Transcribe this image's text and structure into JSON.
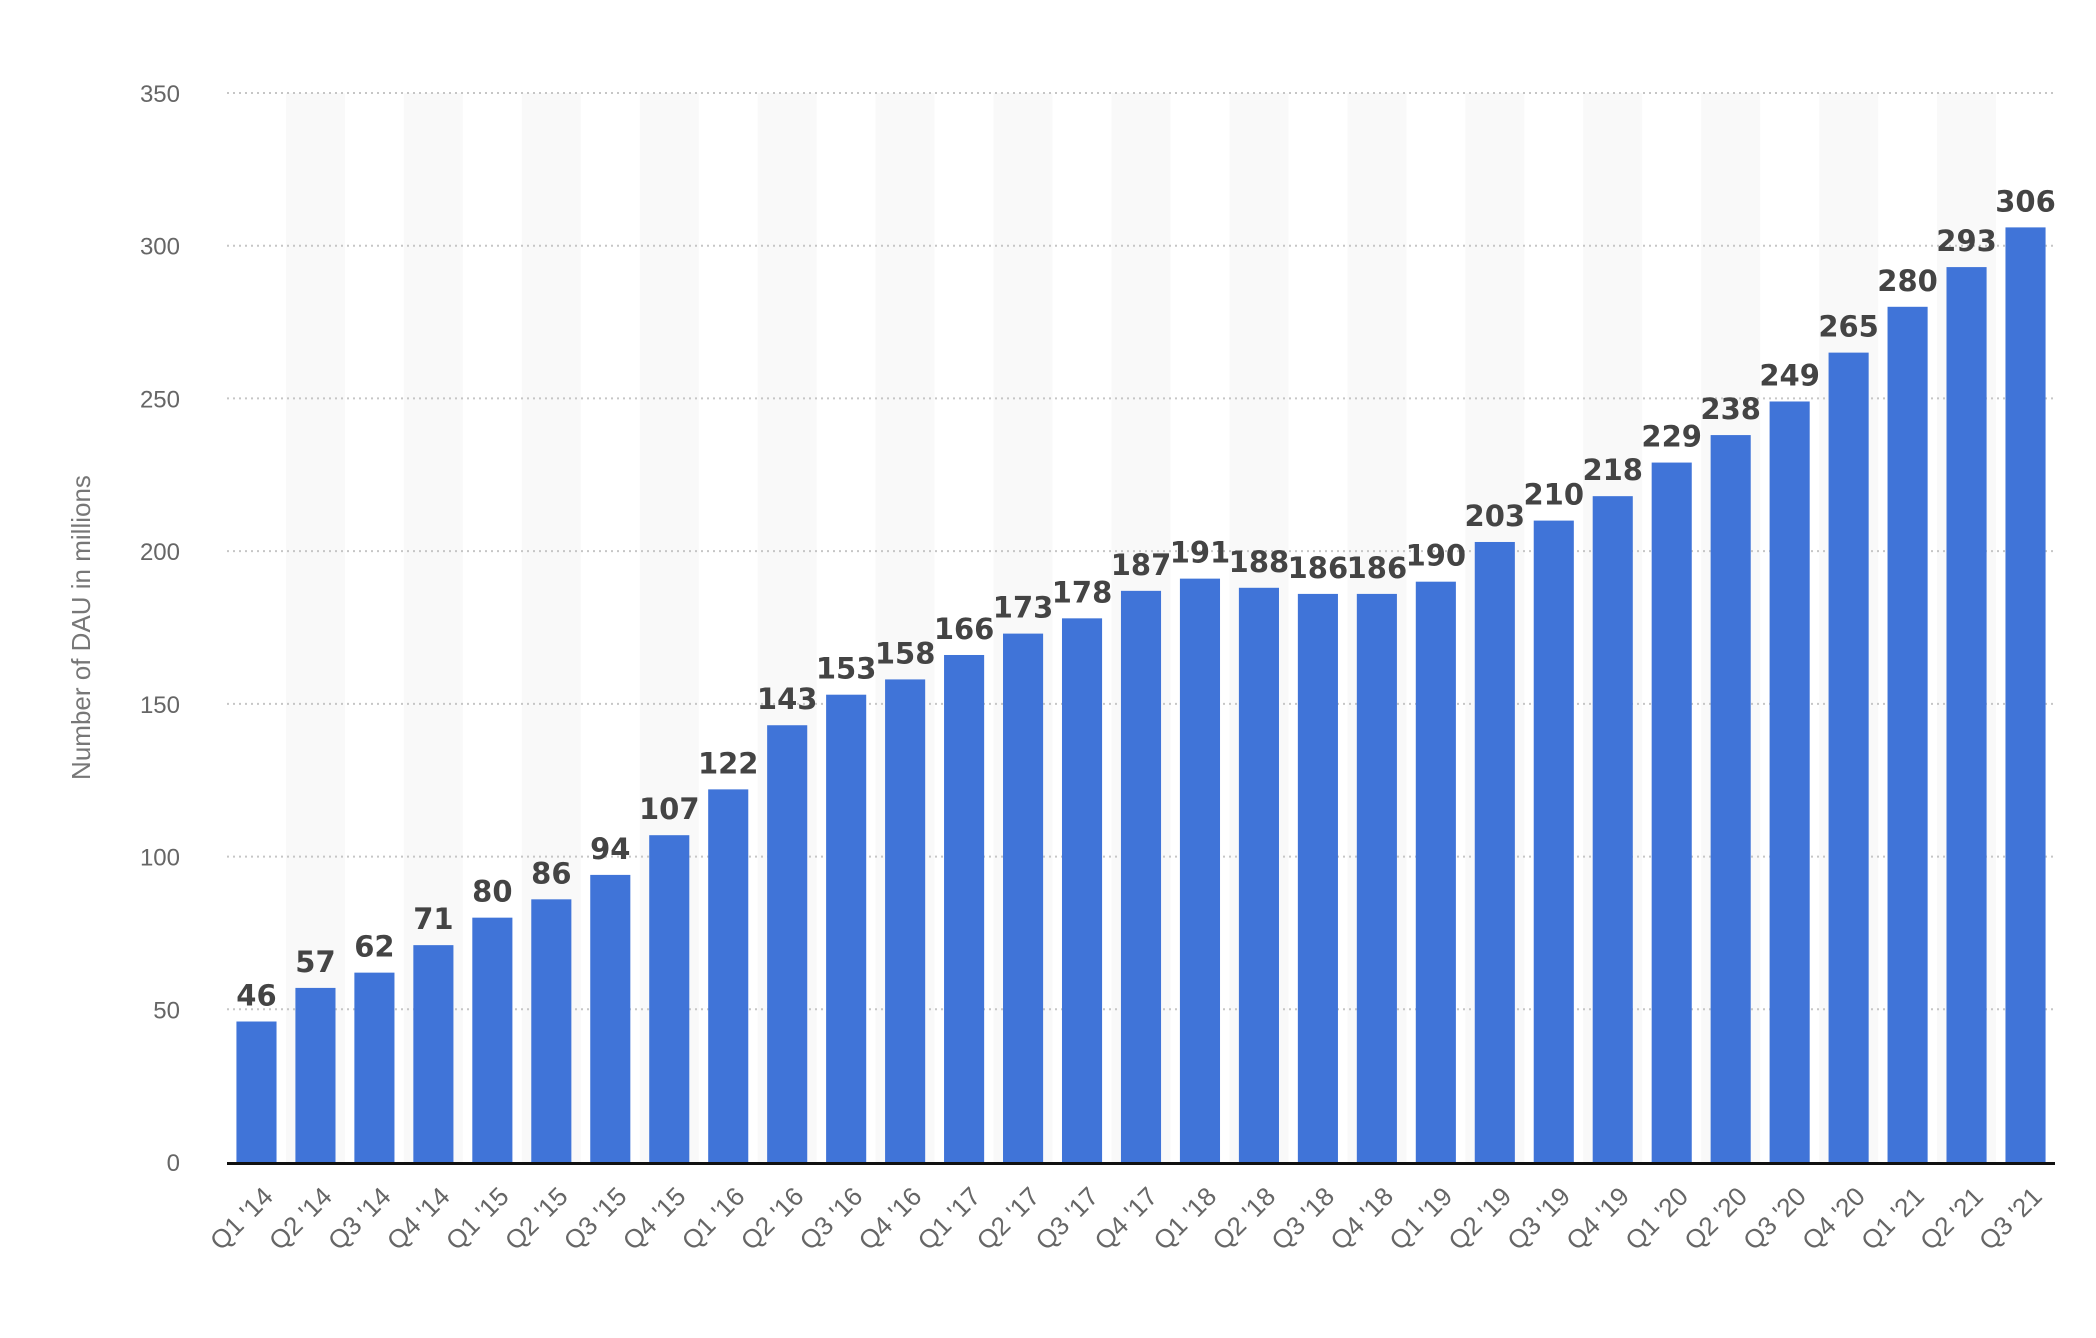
{
  "chart_data": {
    "type": "bar",
    "categories": [
      "Q1 '14",
      "Q2 '14",
      "Q3 '14",
      "Q4 '14",
      "Q1 '15",
      "Q2 '15",
      "Q3 '15",
      "Q4 '15",
      "Q1 '16",
      "Q2 '16",
      "Q3 '16",
      "Q4 '16",
      "Q1 '17",
      "Q2 '17",
      "Q3 '17",
      "Q4 '17",
      "Q1 '18",
      "Q2 '18",
      "Q3 '18",
      "Q4 '18",
      "Q1 '19",
      "Q2 '19",
      "Q3 '19",
      "Q4 '19",
      "Q1 '20",
      "Q2 '20",
      "Q3 '20",
      "Q4 '20",
      "Q1 '21",
      "Q2 '21",
      "Q3 '21"
    ],
    "values": [
      46,
      57,
      62,
      71,
      80,
      86,
      94,
      107,
      122,
      143,
      153,
      158,
      166,
      173,
      178,
      187,
      191,
      188,
      186,
      186,
      190,
      203,
      210,
      218,
      229,
      238,
      249,
      265,
      280,
      293,
      306
    ],
    "ylabel": "Number of DAU in millions",
    "xlabel": "",
    "ylim": [
      0,
      350
    ],
    "yticks": [
      0,
      50,
      100,
      150,
      200,
      250,
      300,
      350
    ],
    "grid": true,
    "bar_color": "#4074d8",
    "band_color": "#f9f9f9",
    "grid_color": "#c6c6c6"
  }
}
